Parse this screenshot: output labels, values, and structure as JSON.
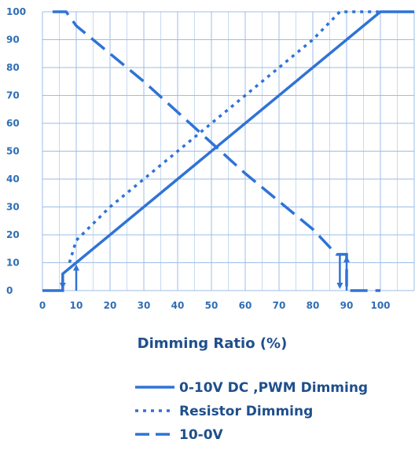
{
  "chart_data": {
    "type": "line",
    "xlabel": "Dimming Ratio (%)",
    "ylabel": "",
    "xlim": [
      0,
      110
    ],
    "ylim": [
      0,
      100
    ],
    "x_ticks": [
      0,
      10,
      20,
      30,
      40,
      50,
      60,
      70,
      80,
      90,
      100
    ],
    "y_ticks": [
      0,
      10,
      20,
      30,
      40,
      50,
      60,
      70,
      80,
      90,
      100
    ],
    "grid": true,
    "legend_position": "bottom",
    "line_color": "#2f73d6",
    "series": [
      {
        "name": "0-10V DC ,PWM Dimming",
        "style": "solid",
        "points": [
          [
            0,
            0
          ],
          [
            6,
            0
          ],
          [
            6,
            6
          ],
          [
            10,
            10
          ],
          [
            100,
            100
          ],
          [
            110,
            100
          ]
        ]
      },
      {
        "name": "Resistor Dimming",
        "style": "dotted",
        "points": [
          [
            8,
            10
          ],
          [
            10,
            18
          ],
          [
            20,
            30
          ],
          [
            30,
            40
          ],
          [
            40,
            50
          ],
          [
            50,
            60
          ],
          [
            60,
            70
          ],
          [
            70,
            80
          ],
          [
            80,
            90
          ],
          [
            88,
            100
          ],
          [
            90,
            100
          ],
          [
            100,
            100
          ]
        ]
      },
      {
        "name": "10-0V",
        "style": "dashed",
        "points": [
          [
            3,
            100
          ],
          [
            7,
            100
          ],
          [
            10,
            95
          ],
          [
            20,
            85
          ],
          [
            30,
            75
          ],
          [
            40,
            64
          ],
          [
            50,
            53
          ],
          [
            60,
            42
          ],
          [
            70,
            32
          ],
          [
            80,
            22
          ],
          [
            87,
            13
          ],
          [
            90,
            13
          ],
          [
            90,
            0
          ],
          [
            100,
            0
          ]
        ]
      }
    ],
    "annotations": [
      {
        "type": "arrow",
        "x": 6,
        "from": 6,
        "to": 0,
        "direction": "down"
      },
      {
        "type": "arrow",
        "x": 10,
        "from": 0,
        "to": 10,
        "direction": "up"
      },
      {
        "type": "arrow",
        "x": 88,
        "from": 13,
        "to": 0,
        "direction": "down"
      },
      {
        "type": "arrow",
        "x": 90,
        "from": 0,
        "to": 13,
        "direction": "up"
      }
    ]
  }
}
